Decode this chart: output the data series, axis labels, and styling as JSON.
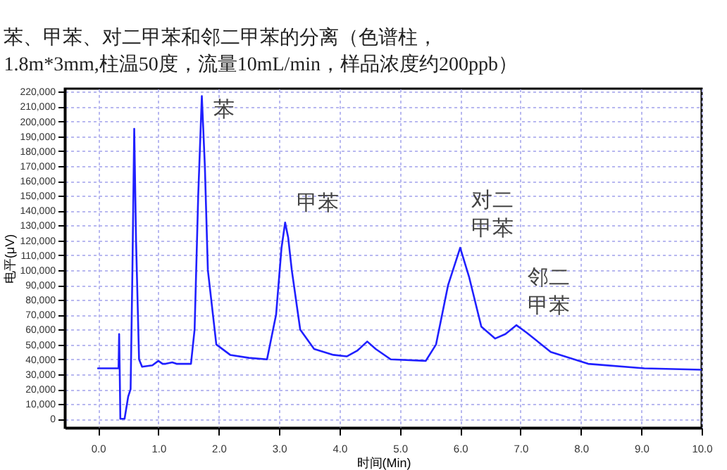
{
  "chart_data": {
    "type": "line",
    "title": "苯、甲苯、对二甲苯和邻二甲苯的分离（色谱柱，\n1.8m*3mm,柱温50度，流量10mL/min，样品浓度约200ppb）",
    "xlabel": "时间(Min)",
    "ylabel": "电平(μV)",
    "series": [
      {
        "color": "#2020ff",
        "x": [
          0,
          0.34,
          0.35,
          0.36,
          0.37,
          0.38,
          0.44,
          0.5,
          0.54,
          0.57,
          0.6,
          0.63,
          0.68,
          0.73,
          0.9,
          1.0,
          1.07,
          1.12,
          1.23,
          1.3,
          1.54,
          1.6,
          1.66,
          1.72,
          1.77,
          1.82,
          1.96,
          2.19,
          2.5,
          2.8,
          2.95,
          3.04,
          3.1,
          3.15,
          3.21,
          3.35,
          3.58,
          3.9,
          4.12,
          4.3,
          4.46,
          4.6,
          4.85,
          5.43,
          5.6,
          5.8,
          6.0,
          6.15,
          6.35,
          6.58,
          6.75,
          6.93,
          7.1,
          7.5,
          8.12,
          9.05,
          10.0
        ],
        "values": [
          34000,
          34000,
          57000,
          31000,
          0,
          0,
          0,
          15000,
          20000,
          100000,
          195000,
          120000,
          40000,
          35000,
          36000,
          39000,
          37000,
          37000,
          38000,
          37000,
          37000,
          60000,
          150000,
          217000,
          170000,
          100000,
          50000,
          43000,
          41000,
          40000,
          70000,
          115000,
          132000,
          122000,
          100000,
          60000,
          47000,
          43000,
          42000,
          46000,
          52000,
          47000,
          40000,
          39000,
          50000,
          90000,
          115000,
          95000,
          62000,
          54000,
          57000,
          63000,
          58000,
          45000,
          37000,
          34000,
          33000
        ]
      }
    ],
    "xlim": [
      -0.55,
      10
    ],
    "ylim": [
      -6000,
      222000
    ],
    "xticks": [
      {
        "value": 0,
        "label": "0.0"
      },
      {
        "value": 1,
        "label": "1.0"
      },
      {
        "value": 2,
        "label": "2.0"
      },
      {
        "value": 3,
        "label": "3.0"
      },
      {
        "value": 4,
        "label": "4.0"
      },
      {
        "value": 5,
        "label": "5.0"
      },
      {
        "value": 6,
        "label": "6.0"
      },
      {
        "value": 7,
        "label": "7.0"
      },
      {
        "value": 8,
        "label": "8.0"
      },
      {
        "value": 9,
        "label": "9.0"
      },
      {
        "value": 10,
        "label": "10.0"
      }
    ],
    "yticks": [
      0,
      {
        "value": 10000,
        "label": "10,000"
      },
      {
        "value": 20000,
        "label": "20,000"
      },
      {
        "value": 30000,
        "label": "30,000"
      },
      {
        "value": 40000,
        "label": "40,000"
      },
      {
        "value": 50000,
        "label": "50,000"
      },
      {
        "value": 60000,
        "label": "60,000"
      },
      {
        "value": 70000,
        "label": "70,000"
      },
      {
        "value": 80000,
        "label": "80,000"
      },
      {
        "value": 90000,
        "label": "90,000"
      },
      {
        "value": 100000,
        "label": "100,000"
      },
      {
        "value": 110000,
        "label": "110,000"
      },
      {
        "value": 120000,
        "label": "120,000"
      },
      {
        "value": 130000,
        "label": "130,000"
      },
      {
        "value": 140000,
        "label": "140,000"
      },
      {
        "value": 150000,
        "label": "150,000"
      },
      {
        "value": 160000,
        "label": "160,000"
      },
      {
        "value": 170000,
        "label": "170,000"
      },
      {
        "value": 180000,
        "label": "180,000"
      },
      {
        "value": 190000,
        "label": "190,000"
      },
      {
        "value": 200000,
        "label": "200,000"
      },
      {
        "value": 210000,
        "label": "210,000"
      },
      {
        "value": 220000,
        "label": "220,000"
      }
    ],
    "grid": true,
    "marker": "none",
    "line_style": "solid",
    "annotations": [
      {
        "text": "苯",
        "x": 1.72,
        "y": 217000
      },
      {
        "text": "甲苯",
        "x": 3.1,
        "y": 132000
      },
      {
        "text": "对二甲苯",
        "x": 6.0,
        "y": 115000
      },
      {
        "text": "邻二甲苯",
        "x": 6.93,
        "y": 63000
      }
    ]
  }
}
